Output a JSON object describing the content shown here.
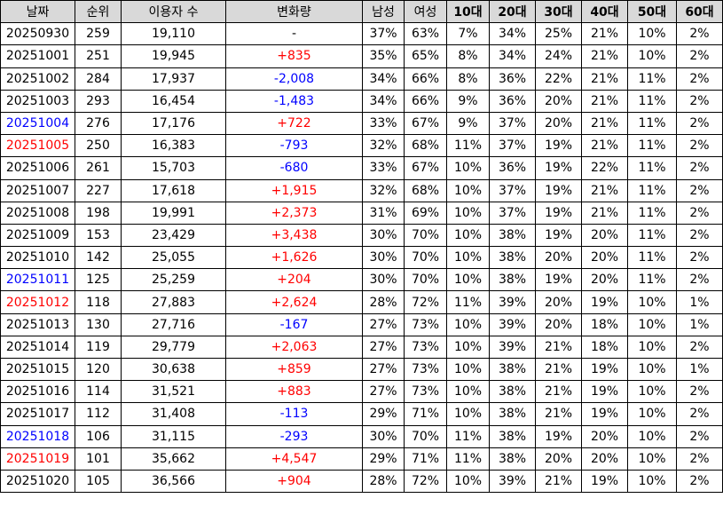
{
  "headers": [
    "날짜",
    "순위",
    "이용자 수",
    "변화량",
    "남성",
    "여성",
    "10대",
    "20대",
    "30대",
    "40대",
    "50대",
    "60대"
  ],
  "colors": {
    "positive": "#ff0000",
    "negative": "#0000ff",
    "saturday": "#0000ff",
    "sunday": "#ff0000",
    "header_bg": "#d9d9d9"
  },
  "rows": [
    {
      "date": "20250930",
      "day": "weekday",
      "rank": "259",
      "users": "19,110",
      "change": "-",
      "change_type": "neutral",
      "male": "37%",
      "female": "63%",
      "a10": "7%",
      "a20": "34%",
      "a30": "25%",
      "a40": "21%",
      "a50": "10%",
      "a60": "2%"
    },
    {
      "date": "20251001",
      "day": "weekday",
      "rank": "251",
      "users": "19,945",
      "change": "+835",
      "change_type": "pos",
      "male": "35%",
      "female": "65%",
      "a10": "8%",
      "a20": "34%",
      "a30": "24%",
      "a40": "21%",
      "a50": "10%",
      "a60": "2%"
    },
    {
      "date": "20251002",
      "day": "weekday",
      "rank": "284",
      "users": "17,937",
      "change": "-2,008",
      "change_type": "neg",
      "male": "34%",
      "female": "66%",
      "a10": "8%",
      "a20": "36%",
      "a30": "22%",
      "a40": "21%",
      "a50": "11%",
      "a60": "2%"
    },
    {
      "date": "20251003",
      "day": "weekday",
      "rank": "293",
      "users": "16,454",
      "change": "-1,483",
      "change_type": "neg",
      "male": "34%",
      "female": "66%",
      "a10": "9%",
      "a20": "36%",
      "a30": "20%",
      "a40": "21%",
      "a50": "11%",
      "a60": "2%"
    },
    {
      "date": "20251004",
      "day": "sat",
      "rank": "276",
      "users": "17,176",
      "change": "+722",
      "change_type": "pos",
      "male": "33%",
      "female": "67%",
      "a10": "9%",
      "a20": "37%",
      "a30": "20%",
      "a40": "21%",
      "a50": "11%",
      "a60": "2%"
    },
    {
      "date": "20251005",
      "day": "sun",
      "rank": "250",
      "users": "16,383",
      "change": "-793",
      "change_type": "neg",
      "male": "32%",
      "female": "68%",
      "a10": "11%",
      "a20": "37%",
      "a30": "19%",
      "a40": "21%",
      "a50": "11%",
      "a60": "2%"
    },
    {
      "date": "20251006",
      "day": "weekday",
      "rank": "261",
      "users": "15,703",
      "change": "-680",
      "change_type": "neg",
      "male": "33%",
      "female": "67%",
      "a10": "10%",
      "a20": "36%",
      "a30": "19%",
      "a40": "22%",
      "a50": "11%",
      "a60": "2%"
    },
    {
      "date": "20251007",
      "day": "weekday",
      "rank": "227",
      "users": "17,618",
      "change": "+1,915",
      "change_type": "pos",
      "male": "32%",
      "female": "68%",
      "a10": "10%",
      "a20": "37%",
      "a30": "19%",
      "a40": "21%",
      "a50": "11%",
      "a60": "2%"
    },
    {
      "date": "20251008",
      "day": "weekday",
      "rank": "198",
      "users": "19,991",
      "change": "+2,373",
      "change_type": "pos",
      "male": "31%",
      "female": "69%",
      "a10": "10%",
      "a20": "37%",
      "a30": "19%",
      "a40": "21%",
      "a50": "11%",
      "a60": "2%"
    },
    {
      "date": "20251009",
      "day": "weekday",
      "rank": "153",
      "users": "23,429",
      "change": "+3,438",
      "change_type": "pos",
      "male": "30%",
      "female": "70%",
      "a10": "10%",
      "a20": "38%",
      "a30": "19%",
      "a40": "20%",
      "a50": "11%",
      "a60": "2%"
    },
    {
      "date": "20251010",
      "day": "weekday",
      "rank": "142",
      "users": "25,055",
      "change": "+1,626",
      "change_type": "pos",
      "male": "30%",
      "female": "70%",
      "a10": "10%",
      "a20": "38%",
      "a30": "20%",
      "a40": "20%",
      "a50": "11%",
      "a60": "2%"
    },
    {
      "date": "20251011",
      "day": "sat",
      "rank": "125",
      "users": "25,259",
      "change": "+204",
      "change_type": "pos",
      "male": "30%",
      "female": "70%",
      "a10": "10%",
      "a20": "38%",
      "a30": "19%",
      "a40": "20%",
      "a50": "11%",
      "a60": "2%"
    },
    {
      "date": "20251012",
      "day": "sun",
      "rank": "118",
      "users": "27,883",
      "change": "+2,624",
      "change_type": "pos",
      "male": "28%",
      "female": "72%",
      "a10": "11%",
      "a20": "39%",
      "a30": "20%",
      "a40": "19%",
      "a50": "10%",
      "a60": "1%"
    },
    {
      "date": "20251013",
      "day": "weekday",
      "rank": "130",
      "users": "27,716",
      "change": "-167",
      "change_type": "neg",
      "male": "27%",
      "female": "73%",
      "a10": "10%",
      "a20": "39%",
      "a30": "20%",
      "a40": "18%",
      "a50": "10%",
      "a60": "1%"
    },
    {
      "date": "20251014",
      "day": "weekday",
      "rank": "119",
      "users": "29,779",
      "change": "+2,063",
      "change_type": "pos",
      "male": "27%",
      "female": "73%",
      "a10": "10%",
      "a20": "39%",
      "a30": "21%",
      "a40": "18%",
      "a50": "10%",
      "a60": "2%"
    },
    {
      "date": "20251015",
      "day": "weekday",
      "rank": "120",
      "users": "30,638",
      "change": "+859",
      "change_type": "pos",
      "male": "27%",
      "female": "73%",
      "a10": "10%",
      "a20": "38%",
      "a30": "21%",
      "a40": "19%",
      "a50": "10%",
      "a60": "1%"
    },
    {
      "date": "20251016",
      "day": "weekday",
      "rank": "114",
      "users": "31,521",
      "change": "+883",
      "change_type": "pos",
      "male": "27%",
      "female": "73%",
      "a10": "10%",
      "a20": "38%",
      "a30": "21%",
      "a40": "19%",
      "a50": "10%",
      "a60": "2%"
    },
    {
      "date": "20251017",
      "day": "weekday",
      "rank": "112",
      "users": "31,408",
      "change": "-113",
      "change_type": "neg",
      "male": "29%",
      "female": "71%",
      "a10": "10%",
      "a20": "38%",
      "a30": "21%",
      "a40": "19%",
      "a50": "10%",
      "a60": "2%"
    },
    {
      "date": "20251018",
      "day": "sat",
      "rank": "106",
      "users": "31,115",
      "change": "-293",
      "change_type": "neg",
      "male": "30%",
      "female": "70%",
      "a10": "11%",
      "a20": "38%",
      "a30": "19%",
      "a40": "20%",
      "a50": "10%",
      "a60": "2%"
    },
    {
      "date": "20251019",
      "day": "sun",
      "rank": "101",
      "users": "35,662",
      "change": "+4,547",
      "change_type": "pos",
      "male": "29%",
      "female": "71%",
      "a10": "11%",
      "a20": "38%",
      "a30": "20%",
      "a40": "20%",
      "a50": "10%",
      "a60": "2%"
    },
    {
      "date": "20251020",
      "day": "weekday",
      "rank": "105",
      "users": "36,566",
      "change": "+904",
      "change_type": "pos",
      "male": "28%",
      "female": "72%",
      "a10": "10%",
      "a20": "39%",
      "a30": "21%",
      "a40": "19%",
      "a50": "10%",
      "a60": "2%"
    }
  ]
}
